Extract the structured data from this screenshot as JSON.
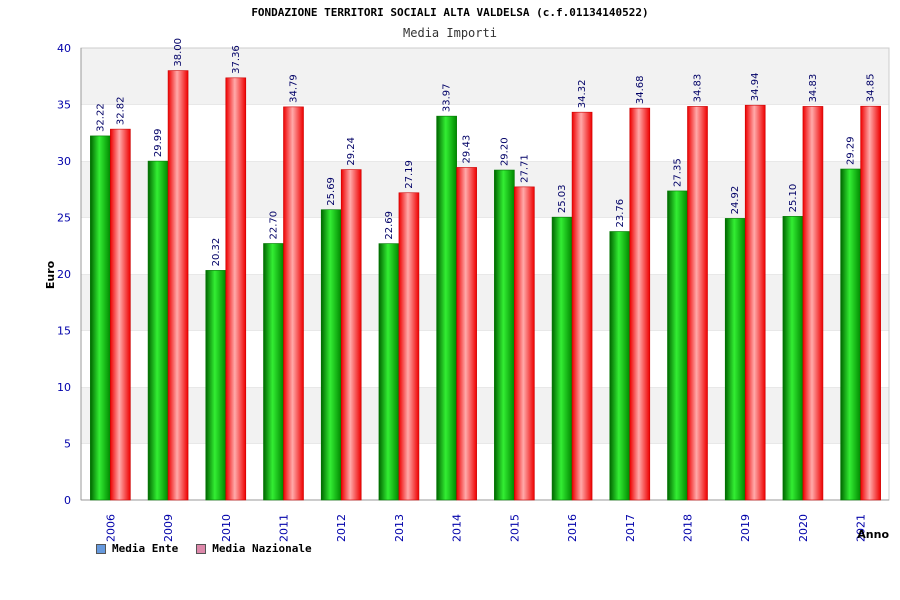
{
  "chart_data": {
    "type": "bar",
    "title": "FONDAZIONE TERRITORI SOCIALI ALTA VALDELSA (c.f.01134140522)",
    "subtitle": "Media Importi",
    "xlabel": "Anno",
    "ylabel": "Euro",
    "ylim": [
      0,
      40
    ],
    "yticks": [
      0,
      5,
      10,
      15,
      20,
      25,
      30,
      35,
      40
    ],
    "grid": true,
    "legend_position": "bottom-left",
    "categories": [
      "2006",
      "2009",
      "2010",
      "2011",
      "2012",
      "2013",
      "2014",
      "2015",
      "2016",
      "2017",
      "2018",
      "2019",
      "2020",
      "2021"
    ],
    "series": [
      {
        "name": "Media Ente",
        "color": "#00bb00",
        "legend_color": "#6699dd",
        "values": [
          32.22,
          29.99,
          20.32,
          22.7,
          25.69,
          22.69,
          33.97,
          29.2,
          25.03,
          23.76,
          27.35,
          24.92,
          25.1,
          29.29
        ],
        "labels": [
          "32.22",
          "29.99",
          "20.32",
          "22.70",
          "25.69",
          "22.69",
          "33.97",
          "29.20",
          "25.03",
          "23.76",
          "27.35",
          "24.92",
          "25.10",
          "29.29"
        ]
      },
      {
        "name": "Media Nazionale",
        "color": "#ee2222",
        "legend_color": "#dd88aa",
        "values": [
          32.82,
          38.0,
          37.36,
          34.79,
          29.24,
          27.19,
          29.43,
          27.71,
          34.32,
          34.68,
          34.83,
          34.94,
          34.83,
          34.85
        ],
        "labels": [
          "32.82",
          "38.00",
          "37.36",
          "34.79",
          "29.24",
          "27.19",
          "29.43",
          "27.71",
          "34.32",
          "34.68",
          "34.83",
          "34.94",
          "34.83",
          "34.85"
        ]
      }
    ]
  }
}
